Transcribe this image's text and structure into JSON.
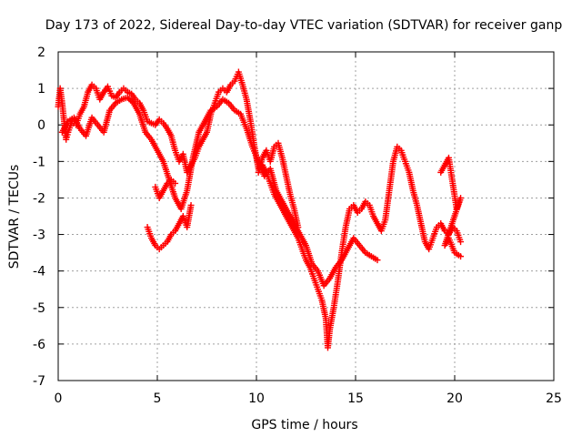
{
  "chart_data": {
    "type": "scatter",
    "title": "Day 173 of 2022, Sidereal Day-to-day VTEC variation (SDTVAR) for receiver ganp",
    "xlabel": "GPS time / hours",
    "ylabel": "SDTVAR / TECUs",
    "xlim": [
      0,
      25
    ],
    "ylim": [
      -7,
      2
    ],
    "xticks": [
      "0",
      "5",
      "10",
      "15",
      "20",
      "25"
    ],
    "yticks": [
      "2",
      "1",
      "0",
      "-1",
      "-2",
      "-3",
      "-4",
      "-5",
      "-6",
      "-7"
    ],
    "grid": true,
    "marker": "plus",
    "series": [
      {
        "name": "main trace",
        "color": "#ff0000",
        "points": [
          [
            0.0,
            0.5
          ],
          [
            0.1,
            1.0
          ],
          [
            0.2,
            0.6
          ],
          [
            0.3,
            0.1
          ],
          [
            0.4,
            -0.4
          ],
          [
            0.5,
            -0.2
          ],
          [
            0.7,
            0.1
          ],
          [
            0.9,
            0.0
          ],
          [
            1.1,
            0.3
          ],
          [
            1.3,
            0.5
          ],
          [
            1.5,
            0.9
          ],
          [
            1.7,
            1.1
          ],
          [
            1.9,
            1.0
          ],
          [
            2.1,
            0.7
          ],
          [
            2.3,
            0.9
          ],
          [
            2.5,
            1.05
          ],
          [
            2.7,
            0.8
          ],
          [
            2.9,
            0.75
          ],
          [
            3.1,
            0.9
          ],
          [
            3.3,
            1.0
          ],
          [
            3.5,
            0.9
          ],
          [
            3.7,
            0.85
          ],
          [
            3.9,
            0.7
          ],
          [
            4.1,
            0.6
          ],
          [
            4.3,
            0.4
          ],
          [
            4.5,
            0.1
          ],
          [
            4.7,
            0.05
          ],
          [
            4.9,
            0.0
          ],
          [
            5.1,
            0.15
          ],
          [
            5.3,
            0.05
          ],
          [
            5.5,
            -0.1
          ],
          [
            5.7,
            -0.3
          ],
          [
            5.9,
            -0.7
          ],
          [
            6.1,
            -1.0
          ],
          [
            6.3,
            -0.8
          ],
          [
            6.5,
            -1.3
          ],
          [
            6.7,
            -1.1
          ],
          [
            6.9,
            -0.9
          ],
          [
            7.1,
            -0.6
          ],
          [
            7.3,
            -0.4
          ],
          [
            7.5,
            -0.2
          ],
          [
            7.7,
            0.3
          ],
          [
            7.9,
            0.6
          ],
          [
            8.1,
            0.9
          ],
          [
            8.3,
            1.0
          ],
          [
            8.5,
            0.9
          ],
          [
            8.7,
            1.1
          ],
          [
            8.9,
            1.2
          ],
          [
            9.1,
            1.45
          ],
          [
            9.3,
            1.1
          ],
          [
            9.5,
            0.7
          ],
          [
            9.7,
            0.1
          ],
          [
            9.9,
            -0.6
          ],
          [
            10.1,
            -1.2
          ],
          [
            10.3,
            -1.1
          ],
          [
            10.5,
            -1.3
          ],
          [
            10.7,
            -1.6
          ],
          [
            10.9,
            -1.9
          ],
          [
            11.1,
            -2.1
          ],
          [
            11.3,
            -2.3
          ],
          [
            11.5,
            -2.5
          ],
          [
            11.7,
            -2.7
          ],
          [
            11.9,
            -2.9
          ],
          [
            12.1,
            -3.1
          ],
          [
            12.3,
            -3.4
          ],
          [
            12.5,
            -3.7
          ],
          [
            12.7,
            -3.9
          ],
          [
            12.9,
            -4.2
          ],
          [
            13.1,
            -4.5
          ],
          [
            13.3,
            -4.8
          ],
          [
            13.5,
            -5.3
          ],
          [
            13.6,
            -6.1
          ],
          [
            13.7,
            -5.6
          ],
          [
            13.9,
            -5.0
          ],
          [
            14.1,
            -4.3
          ],
          [
            14.3,
            -3.5
          ],
          [
            14.5,
            -2.8
          ],
          [
            14.7,
            -2.3
          ],
          [
            14.9,
            -2.2
          ],
          [
            15.1,
            -2.4
          ],
          [
            15.3,
            -2.3
          ],
          [
            15.5,
            -2.1
          ],
          [
            15.7,
            -2.2
          ],
          [
            15.9,
            -2.5
          ],
          [
            16.1,
            -2.7
          ],
          [
            16.3,
            -2.9
          ],
          [
            16.5,
            -2.6
          ],
          [
            16.7,
            -1.8
          ],
          [
            16.9,
            -1.0
          ],
          [
            17.1,
            -0.6
          ],
          [
            17.3,
            -0.7
          ],
          [
            17.5,
            -1.0
          ],
          [
            17.7,
            -1.3
          ],
          [
            17.9,
            -1.8
          ],
          [
            18.1,
            -2.2
          ],
          [
            18.3,
            -2.7
          ],
          [
            18.5,
            -3.2
          ],
          [
            18.7,
            -3.4
          ],
          [
            18.9,
            -3.1
          ],
          [
            19.1,
            -2.8
          ],
          [
            19.3,
            -2.7
          ],
          [
            19.5,
            -2.9
          ],
          [
            19.7,
            -3.0
          ],
          [
            19.9,
            -2.8
          ],
          [
            20.1,
            -2.9
          ],
          [
            20.3,
            -3.2
          ]
        ]
      },
      {
        "name": "secondary trace",
        "color": "#ff0000",
        "points": [
          [
            0.2,
            -0.2
          ],
          [
            0.5,
            0.1
          ],
          [
            0.8,
            0.2
          ],
          [
            1.1,
            -0.1
          ],
          [
            1.4,
            -0.3
          ],
          [
            1.7,
            0.2
          ],
          [
            2.0,
            0.0
          ],
          [
            2.3,
            -0.2
          ],
          [
            2.6,
            0.4
          ],
          [
            2.9,
            0.6
          ],
          [
            3.2,
            0.7
          ],
          [
            3.5,
            0.75
          ],
          [
            3.8,
            0.6
          ],
          [
            4.1,
            0.3
          ],
          [
            4.4,
            -0.2
          ],
          [
            4.7,
            -0.4
          ],
          [
            5.0,
            -0.7
          ],
          [
            5.3,
            -1.0
          ],
          [
            5.6,
            -1.5
          ],
          [
            5.9,
            -2.0
          ],
          [
            6.2,
            -2.3
          ],
          [
            6.5,
            -1.8
          ],
          [
            6.8,
            -0.9
          ],
          [
            7.1,
            -0.2
          ],
          [
            7.4,
            0.1
          ],
          [
            7.7,
            0.4
          ],
          [
            8.0,
            0.5
          ],
          [
            8.3,
            0.7
          ],
          [
            8.6,
            0.6
          ],
          [
            8.9,
            0.4
          ],
          [
            9.2,
            0.3
          ],
          [
            9.5,
            -0.1
          ],
          [
            9.8,
            -0.6
          ],
          [
            10.1,
            -1.0
          ],
          [
            10.4,
            -1.4
          ],
          [
            10.7,
            -1.2
          ],
          [
            11.0,
            -1.8
          ],
          [
            11.3,
            -2.1
          ],
          [
            11.6,
            -2.4
          ],
          [
            11.9,
            -2.7
          ],
          [
            12.2,
            -3.0
          ],
          [
            12.5,
            -3.3
          ],
          [
            12.8,
            -3.8
          ],
          [
            13.1,
            -4.0
          ],
          [
            13.4,
            -4.4
          ],
          [
            13.7,
            -4.2
          ],
          [
            14.0,
            -3.9
          ],
          [
            14.3,
            -3.7
          ],
          [
            14.6,
            -3.4
          ],
          [
            14.9,
            -3.1
          ],
          [
            15.2,
            -3.3
          ],
          [
            15.5,
            -3.5
          ],
          [
            15.8,
            -3.6
          ],
          [
            16.1,
            -3.7
          ]
        ]
      },
      {
        "name": "lower segment near 5h",
        "color": "#ff0000",
        "points": [
          [
            4.5,
            -2.8
          ],
          [
            4.7,
            -3.1
          ],
          [
            4.9,
            -3.3
          ],
          [
            5.1,
            -3.4
          ],
          [
            5.3,
            -3.3
          ],
          [
            5.5,
            -3.2
          ],
          [
            5.7,
            -3.0
          ],
          [
            5.9,
            -2.9
          ],
          [
            6.1,
            -2.7
          ],
          [
            6.3,
            -2.5
          ],
          [
            6.5,
            -2.8
          ],
          [
            6.7,
            -2.2
          ]
        ]
      },
      {
        "name": "segment near 5-6h",
        "color": "#ff0000",
        "points": [
          [
            4.9,
            -1.7
          ],
          [
            5.1,
            -2.0
          ],
          [
            5.3,
            -1.8
          ],
          [
            5.5,
            -1.6
          ],
          [
            5.7,
            -1.5
          ],
          [
            5.9,
            -1.6
          ]
        ]
      },
      {
        "name": "segment near 10-12h",
        "color": "#ff0000",
        "points": [
          [
            10.1,
            -1.3
          ],
          [
            10.3,
            -0.9
          ],
          [
            10.5,
            -0.7
          ],
          [
            10.7,
            -1.0
          ],
          [
            10.9,
            -0.6
          ],
          [
            11.1,
            -0.5
          ],
          [
            11.3,
            -0.9
          ],
          [
            11.5,
            -1.4
          ],
          [
            11.7,
            -1.9
          ],
          [
            11.9,
            -2.3
          ],
          [
            12.1,
            -2.8
          ]
        ]
      },
      {
        "name": "late segment near 19-20h",
        "color": "#ff0000",
        "points": [
          [
            19.3,
            -1.3
          ],
          [
            19.5,
            -1.1
          ],
          [
            19.7,
            -0.9
          ],
          [
            19.9,
            -1.6
          ],
          [
            20.1,
            -2.3
          ],
          [
            20.3,
            -2.0
          ],
          [
            19.5,
            -3.3
          ],
          [
            19.7,
            -3.1
          ],
          [
            20.0,
            -3.5
          ],
          [
            20.3,
            -3.6
          ]
        ]
      }
    ]
  }
}
